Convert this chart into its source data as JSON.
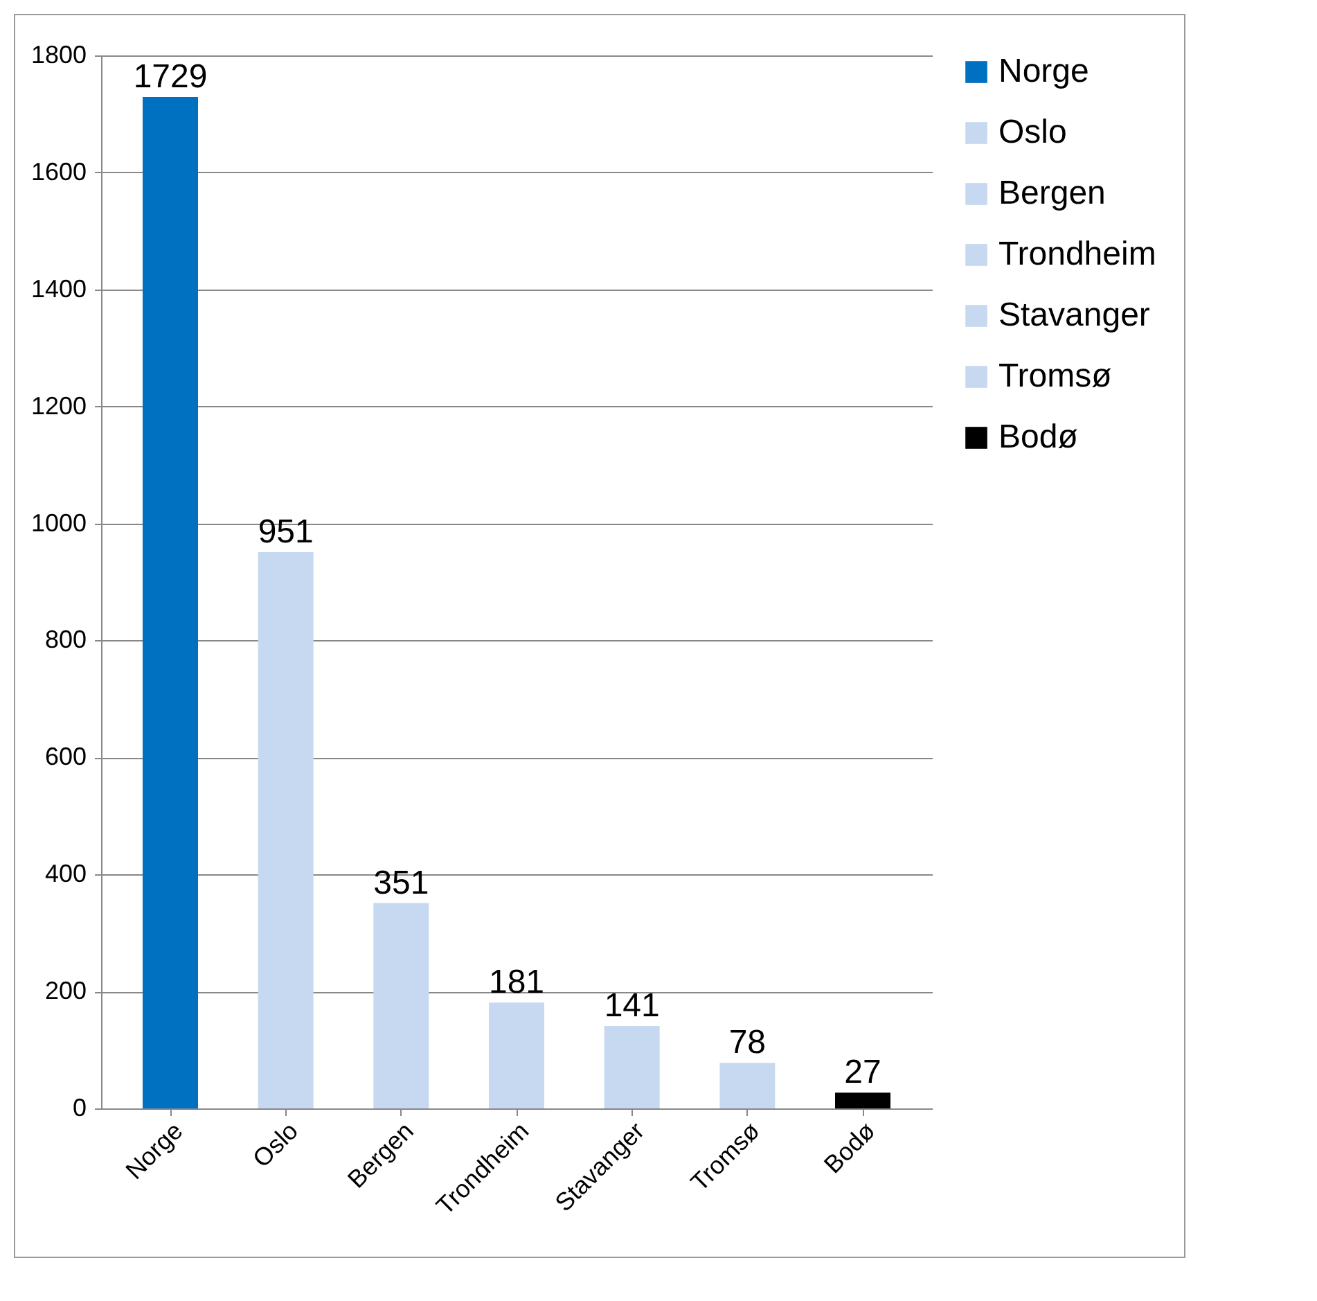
{
  "chart_data": {
    "type": "bar",
    "stacked": true,
    "categories": [
      "Norge",
      "Oslo",
      "Bergen",
      "Trondheim",
      "Stavanger",
      "Tromsø",
      "Bodø"
    ],
    "series": [
      {
        "name": "Norge",
        "color": "#0070c0",
        "values": [
          1729,
          null,
          null,
          null,
          null,
          null,
          null
        ]
      },
      {
        "name": "Oslo",
        "color": "#c6d9f0",
        "values": [
          null,
          951,
          null,
          null,
          null,
          null,
          null
        ]
      },
      {
        "name": "Bergen",
        "color": "#c6d9f0",
        "values": [
          null,
          null,
          351,
          null,
          null,
          null,
          null
        ]
      },
      {
        "name": "Trondheim",
        "color": "#c6d9f0",
        "values": [
          null,
          null,
          null,
          181,
          null,
          null,
          null
        ]
      },
      {
        "name": "Stavanger",
        "color": "#c6d9f0",
        "values": [
          null,
          null,
          null,
          null,
          141,
          null,
          null
        ]
      },
      {
        "name": "Tromsø",
        "color": "#c6d9f0",
        "values": [
          null,
          null,
          null,
          null,
          null,
          78,
          null
        ]
      },
      {
        "name": "Bodø",
        "color": "#000000",
        "values": [
          null,
          null,
          null,
          null,
          null,
          null,
          27
        ]
      }
    ],
    "ylim": [
      0,
      1800
    ],
    "yticks": [
      0,
      200,
      400,
      600,
      800,
      1000,
      1200,
      1400,
      1600,
      1800
    ],
    "grid": "y",
    "legend": "right",
    "data_labels": true
  }
}
